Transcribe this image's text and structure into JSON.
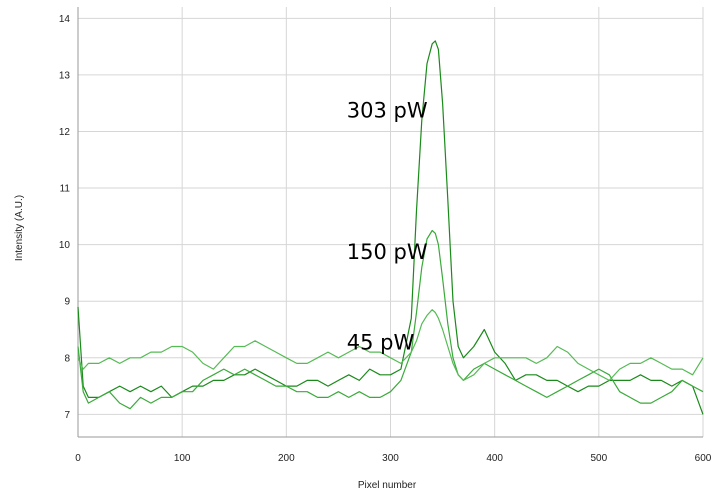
{
  "chart_data": {
    "type": "line",
    "title": "",
    "xlabel": "Pixel number",
    "ylabel": "Intensity (A.U.)",
    "xlim": [
      0,
      600
    ],
    "ylim": [
      6.6,
      14.2
    ],
    "xticks": [
      0,
      100,
      200,
      300,
      400,
      500,
      600
    ],
    "yticks": [
      7,
      8,
      9,
      10,
      11,
      12,
      13,
      14
    ],
    "grid": true,
    "legend": "none",
    "annotations": [
      {
        "text": "303 pW",
        "x": 258,
        "y": 12.25
      },
      {
        "text": "150 pW",
        "x": 258,
        "y": 9.75
      },
      {
        "text": "45 pW",
        "x": 258,
        "y": 8.15
      }
    ],
    "series": [
      {
        "color": "#1a8a1a",
        "x": [
          0,
          5,
          10,
          20,
          30,
          40,
          50,
          60,
          70,
          80,
          90,
          100,
          110,
          120,
          130,
          140,
          150,
          160,
          170,
          180,
          190,
          200,
          210,
          220,
          230,
          240,
          250,
          260,
          270,
          280,
          290,
          300,
          310,
          320,
          325,
          330,
          335,
          340,
          343,
          346,
          350,
          355,
          360,
          365,
          370,
          380,
          390,
          400,
          410,
          420,
          430,
          440,
          450,
          460,
          470,
          480,
          490,
          500,
          510,
          520,
          530,
          540,
          550,
          560,
          570,
          580,
          590,
          600
        ],
        "y": [
          8.9,
          7.5,
          7.3,
          7.3,
          7.4,
          7.5,
          7.4,
          7.5,
          7.4,
          7.5,
          7.3,
          7.4,
          7.5,
          7.5,
          7.6,
          7.6,
          7.7,
          7.7,
          7.8,
          7.7,
          7.6,
          7.5,
          7.5,
          7.6,
          7.6,
          7.5,
          7.6,
          7.7,
          7.6,
          7.8,
          7.7,
          7.7,
          7.8,
          8.7,
          10.6,
          12.2,
          13.2,
          13.55,
          13.6,
          13.45,
          12.5,
          10.8,
          9.0,
          8.2,
          8.0,
          8.2,
          8.5,
          8.1,
          7.9,
          7.6,
          7.7,
          7.7,
          7.6,
          7.6,
          7.5,
          7.4,
          7.5,
          7.5,
          7.6,
          7.6,
          7.6,
          7.7,
          7.6,
          7.6,
          7.5,
          7.6,
          7.5,
          7.0
        ]
      },
      {
        "color": "#3aaa3a",
        "x": [
          0,
          5,
          10,
          20,
          30,
          40,
          50,
          60,
          70,
          80,
          90,
          100,
          110,
          120,
          130,
          140,
          150,
          160,
          170,
          180,
          190,
          200,
          210,
          220,
          230,
          240,
          250,
          260,
          270,
          280,
          290,
          300,
          310,
          320,
          325,
          330,
          335,
          340,
          343,
          346,
          350,
          355,
          360,
          365,
          370,
          380,
          390,
          400,
          410,
          420,
          430,
          440,
          450,
          460,
          470,
          480,
          490,
          500,
          510,
          520,
          530,
          540,
          550,
          560,
          570,
          580,
          590,
          600
        ],
        "y": [
          8.2,
          7.4,
          7.2,
          7.3,
          7.4,
          7.2,
          7.1,
          7.3,
          7.2,
          7.3,
          7.3,
          7.4,
          7.4,
          7.6,
          7.7,
          7.8,
          7.7,
          7.8,
          7.7,
          7.6,
          7.5,
          7.5,
          7.4,
          7.4,
          7.3,
          7.3,
          7.4,
          7.3,
          7.4,
          7.3,
          7.3,
          7.4,
          7.6,
          8.1,
          8.8,
          9.6,
          10.1,
          10.25,
          10.2,
          10.0,
          9.4,
          8.6,
          8.0,
          7.7,
          7.6,
          7.8,
          7.9,
          7.8,
          7.7,
          7.6,
          7.5,
          7.4,
          7.3,
          7.4,
          7.5,
          7.6,
          7.7,
          7.8,
          7.7,
          7.4,
          7.3,
          7.2,
          7.2,
          7.3,
          7.4,
          7.6,
          7.5,
          7.4
        ]
      },
      {
        "color": "#55bb55",
        "x": [
          0,
          5,
          10,
          20,
          30,
          40,
          50,
          60,
          70,
          80,
          90,
          100,
          110,
          120,
          130,
          140,
          150,
          160,
          170,
          180,
          190,
          200,
          210,
          220,
          230,
          240,
          250,
          260,
          270,
          280,
          290,
          300,
          310,
          320,
          325,
          330,
          335,
          340,
          343,
          346,
          350,
          355,
          360,
          365,
          370,
          380,
          390,
          400,
          410,
          420,
          430,
          440,
          450,
          460,
          470,
          480,
          490,
          500,
          510,
          520,
          530,
          540,
          550,
          560,
          570,
          580,
          590,
          600
        ],
        "y": [
          8.0,
          7.8,
          7.9,
          7.9,
          8.0,
          7.9,
          8.0,
          8.0,
          8.1,
          8.1,
          8.2,
          8.2,
          8.1,
          7.9,
          7.8,
          8.0,
          8.2,
          8.2,
          8.3,
          8.2,
          8.1,
          8.0,
          7.9,
          7.9,
          8.0,
          8.1,
          8.0,
          8.1,
          8.2,
          8.1,
          8.1,
          8.0,
          7.9,
          8.1,
          8.3,
          8.6,
          8.75,
          8.85,
          8.8,
          8.7,
          8.5,
          8.2,
          7.9,
          7.7,
          7.6,
          7.7,
          7.9,
          8.0,
          8.0,
          8.0,
          8.0,
          7.9,
          8.0,
          8.2,
          8.1,
          7.9,
          7.8,
          7.7,
          7.6,
          7.8,
          7.9,
          7.9,
          8.0,
          7.9,
          7.8,
          7.8,
          7.7,
          8.0
        ]
      }
    ]
  }
}
